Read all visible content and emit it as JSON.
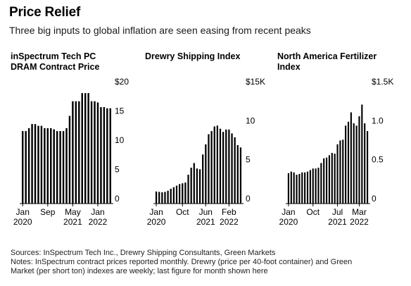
{
  "header": {
    "title": "Price Relief",
    "subtitle": "Three big inputs to global inflation are seen easing from recent peaks"
  },
  "chart_data": [
    {
      "type": "bar",
      "title": "inSpectrum Tech PC DRAM Contract Price",
      "ylim": [
        0,
        20
      ],
      "yticks": [
        "$20",
        "15",
        "10",
        "5",
        "0"
      ],
      "ytick_values": [
        20,
        15,
        10,
        5,
        0
      ],
      "xtick_labels": [
        {
          "label": "Jan",
          "sub": "2020",
          "index": 0
        },
        {
          "label": "Sep",
          "sub": "",
          "index": 8
        },
        {
          "label": "May",
          "sub": "2021",
          "index": 16
        },
        {
          "label": "Jan",
          "sub": "2022",
          "index": 24
        }
      ],
      "values": [
        12.4,
        12.4,
        12.9,
        13.6,
        13.6,
        13.3,
        13.3,
        12.9,
        12.9,
        12.9,
        12.7,
        12.4,
        12.4,
        12.4,
        12.9,
        15,
        17.5,
        17.5,
        17.5,
        18.9,
        18.9,
        18.9,
        17.5,
        17.5,
        17.3,
        16.5,
        16.5,
        16.3,
        16.3
      ],
      "grid": false
    },
    {
      "type": "bar",
      "title": "Drewry Shipping Index",
      "ylim": [
        0,
        15000
      ],
      "yticks": [
        "$15K",
        "10",
        "5",
        "0"
      ],
      "ytick_values": [
        15000,
        10000,
        5000,
        0
      ],
      "xtick_labels": [
        {
          "label": "Jan",
          "sub": "2020",
          "index": 0
        },
        {
          "label": "Oct",
          "sub": "",
          "index": 9
        },
        {
          "label": "Jun",
          "sub": "2021",
          "index": 17
        },
        {
          "label": "Feb",
          "sub": "2022",
          "index": 25
        }
      ],
      "values": [
        1550,
        1500,
        1450,
        1500,
        1650,
        1900,
        2100,
        2300,
        2500,
        2600,
        2700,
        3700,
        4600,
        5200,
        4500,
        4400,
        6300,
        7600,
        8900,
        9300,
        9900,
        10000,
        9600,
        9200,
        9500,
        9500,
        9000,
        8500,
        7500,
        7200
      ],
      "grid": false
    },
    {
      "type": "bar",
      "title": "North America Fertilizer Index",
      "ylim": [
        0,
        1500
      ],
      "yticks": [
        "$1.5K",
        "1.0",
        "0.5",
        "0"
      ],
      "ytick_values": [
        1500,
        1000,
        500,
        0
      ],
      "xtick_labels": [
        {
          "label": "Jan",
          "sub": "2020",
          "index": 0
        },
        {
          "label": "Oct",
          "sub": "",
          "index": 9
        },
        {
          "label": "Jul",
          "sub": "2021",
          "index": 18
        },
        {
          "label": "Mar",
          "sub": "2022",
          "index": 26
        }
      ],
      "values": [
        390,
        410,
        400,
        370,
        380,
        400,
        400,
        410,
        430,
        450,
        450,
        460,
        520,
        580,
        590,
        620,
        650,
        640,
        760,
        810,
        820,
        1000,
        1050,
        1170,
        1030,
        1000,
        1120,
        1270,
        1030,
        930
      ],
      "grid": false
    }
  ],
  "footer": {
    "sources": "Sources: InSpectrum Tech Inc., Drewry Shipping Consultants, Green Markets",
    "notes_line1": "Notes: InSpectrum contract prices reported monthly. Drewry (price per 40-foot container) and Green",
    "notes_line2": "Market (per short ton) indexes are weekly; last figure for month shown here"
  }
}
